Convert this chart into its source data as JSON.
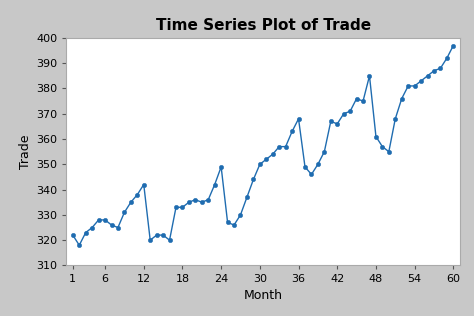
{
  "title": "Time Series Plot of Trade",
  "xlabel": "Month",
  "ylabel": "Trade",
  "xlim": [
    0,
    61
  ],
  "ylim": [
    310,
    400
  ],
  "xticks": [
    1,
    6,
    12,
    18,
    24,
    30,
    36,
    42,
    48,
    54,
    60
  ],
  "yticks": [
    310,
    320,
    330,
    340,
    350,
    360,
    370,
    380,
    390,
    400
  ],
  "background_color": "#ffffff",
  "outer_background": "#c8c8c8",
  "line_color": "#1f6cb0",
  "marker_color": "#1f6cb0",
  "title_fontsize": 11,
  "label_fontsize": 9,
  "tick_fontsize": 8,
  "x": [
    1,
    2,
    3,
    4,
    5,
    6,
    7,
    8,
    9,
    10,
    11,
    12,
    13,
    14,
    15,
    16,
    17,
    18,
    19,
    20,
    21,
    22,
    23,
    24,
    25,
    26,
    27,
    28,
    29,
    30,
    31,
    32,
    33,
    34,
    35,
    36,
    37,
    38,
    39,
    40,
    41,
    42,
    43,
    44,
    45,
    46,
    47,
    48,
    49,
    50,
    51,
    52,
    53,
    54,
    55,
    56,
    57,
    58,
    59,
    60
  ],
  "y": [
    322,
    318,
    323,
    325,
    328,
    328,
    326,
    325,
    331,
    335,
    338,
    342,
    320,
    322,
    322,
    320,
    333,
    333,
    335,
    336,
    335,
    336,
    342,
    349,
    327,
    326,
    330,
    337,
    344,
    350,
    352,
    354,
    357,
    357,
    363,
    368,
    349,
    346,
    350,
    355,
    367,
    366,
    370,
    371,
    376,
    375,
    385,
    361,
    357,
    355,
    368,
    376,
    381,
    381,
    383,
    385,
    387,
    388,
    392,
    397
  ]
}
